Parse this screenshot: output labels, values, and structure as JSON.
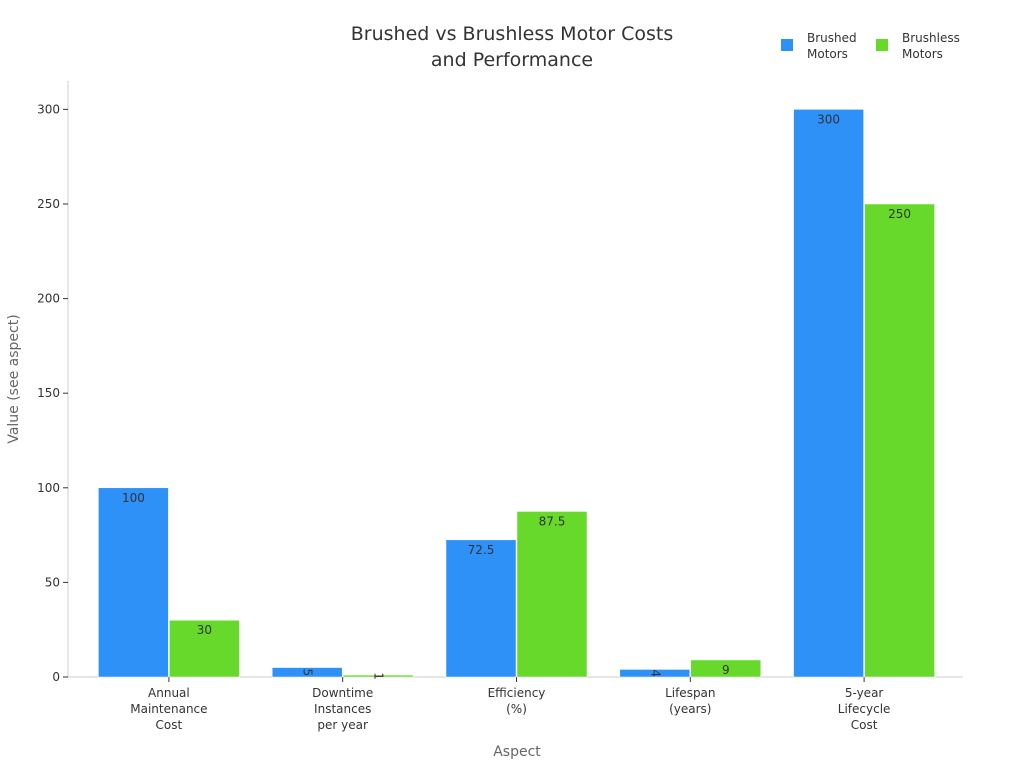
{
  "chart_data": {
    "type": "bar",
    "title": [
      "Brushed vs Brushless Motor Costs",
      "and Performance"
    ],
    "xlabel": "Aspect",
    "ylabel": "Value (see aspect)",
    "ylim": [
      0,
      315
    ],
    "yticks": [
      0,
      50,
      100,
      150,
      200,
      250,
      300
    ],
    "grid": false,
    "legend_position": "top-right",
    "categories": [
      [
        "Annual",
        "Maintenance",
        "Cost"
      ],
      [
        "Downtime",
        "Instances",
        "per year"
      ],
      [
        "Efficiency",
        "(%)"
      ],
      [
        "Lifespan",
        "(years)"
      ],
      [
        "5-year",
        "Lifecycle",
        "Cost"
      ]
    ],
    "series": [
      {
        "name": [
          "Brushed",
          "Motors"
        ],
        "color": "#2e91f8",
        "values": [
          100,
          5,
          72.5,
          4,
          300
        ],
        "labels": [
          "100",
          "5",
          "72.5",
          "4",
          "300"
        ]
      },
      {
        "name": [
          "Brushless",
          "Motors"
        ],
        "color": "#66d92a",
        "values": [
          30,
          1,
          87.5,
          9,
          250
        ],
        "labels": [
          "30",
          "1",
          "87.5",
          "9",
          "250"
        ]
      }
    ]
  }
}
